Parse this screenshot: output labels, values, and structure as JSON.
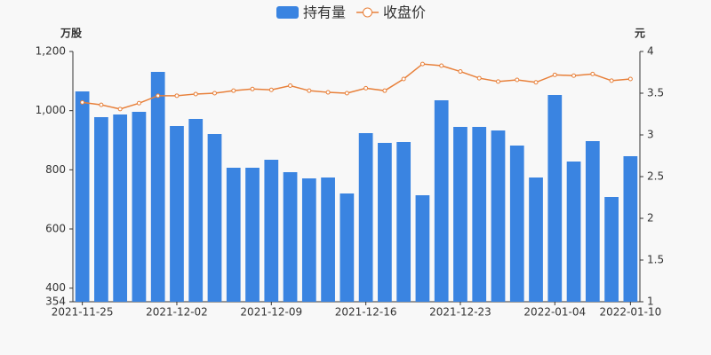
{
  "chart_data": {
    "type": "bar_line",
    "legend_position": "top",
    "y_unit": "万股",
    "y2_unit": "元",
    "categories": [
      "2021-11-25",
      null,
      null,
      null,
      null,
      "2021-12-02",
      null,
      null,
      null,
      null,
      "2021-12-09",
      null,
      null,
      null,
      null,
      "2021-12-16",
      null,
      null,
      null,
      null,
      "2021-12-23",
      null,
      null,
      null,
      null,
      "2022-01-04",
      null,
      null,
      null,
      "2022-01-10"
    ],
    "series": [
      {
        "name": "持有量",
        "type": "bar",
        "color": "#3a84e1",
        "values": [
          1065,
          978,
          987,
          996,
          1131,
          948,
          972,
          921,
          807,
          807,
          834,
          792,
          771,
          774,
          720,
          924,
          891,
          894,
          714,
          1035,
          945,
          945,
          933,
          882,
          774,
          1053,
          828,
          897,
          708,
          846
        ]
      },
      {
        "name": "收盘价",
        "type": "line",
        "axis": "y2",
        "color": "#e8803a",
        "values": [
          3.39,
          3.36,
          3.31,
          3.38,
          3.47,
          3.47,
          3.49,
          3.5,
          3.53,
          3.55,
          3.54,
          3.59,
          3.53,
          3.51,
          3.5,
          3.56,
          3.53,
          3.67,
          3.85,
          3.83,
          3.76,
          3.68,
          3.64,
          3.66,
          3.63,
          3.72,
          3.71,
          3.73,
          3.65,
          3.67
        ]
      }
    ],
    "ylim": [
      354,
      1200
    ],
    "yticks": [
      354,
      400,
      600,
      800,
      {
        "value": 1000,
        "label": "1,000"
      },
      {
        "value": 1200,
        "label": "1,200"
      }
    ],
    "y2lim": [
      1,
      4
    ],
    "y2ticks": [
      1,
      1.5,
      2,
      2.5,
      3,
      3.5,
      4
    ]
  }
}
